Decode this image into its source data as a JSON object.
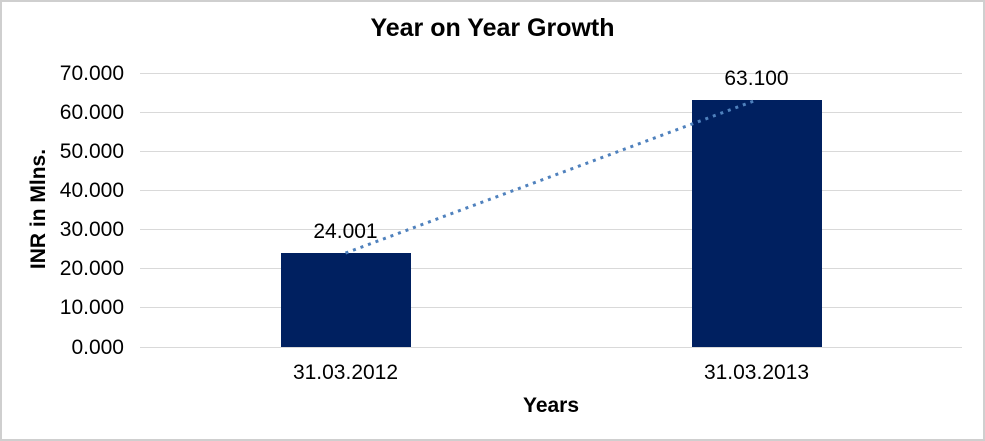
{
  "chart_data": {
    "type": "bar",
    "title": "Year on Year Growth",
    "xlabel": "Years",
    "ylabel": "INR in Mlns.",
    "categories": [
      "31.03.2012",
      "31.03.2013"
    ],
    "values": [
      24.001,
      63.1
    ],
    "data_labels": [
      "24.001",
      "63.100"
    ],
    "ylim": [
      0,
      70
    ],
    "ytick_step": 10,
    "ytick_decimals": 3,
    "ytick_labels": [
      "0.000",
      "10.000",
      "20.000",
      "30.000",
      "40.000",
      "50.000",
      "60.000",
      "70.000"
    ],
    "grid": "horizontal-only",
    "legend": "none",
    "trendline": {
      "show": true,
      "style": "dotted",
      "from": "31.03.2012",
      "to": "31.03.2013"
    },
    "colors": {
      "bar": "#002060",
      "trendline": "#4f81bd",
      "gridline": "#d9d9d9",
      "text": "#000000",
      "border": "#cfcfcf",
      "background": "#ffffff"
    }
  }
}
